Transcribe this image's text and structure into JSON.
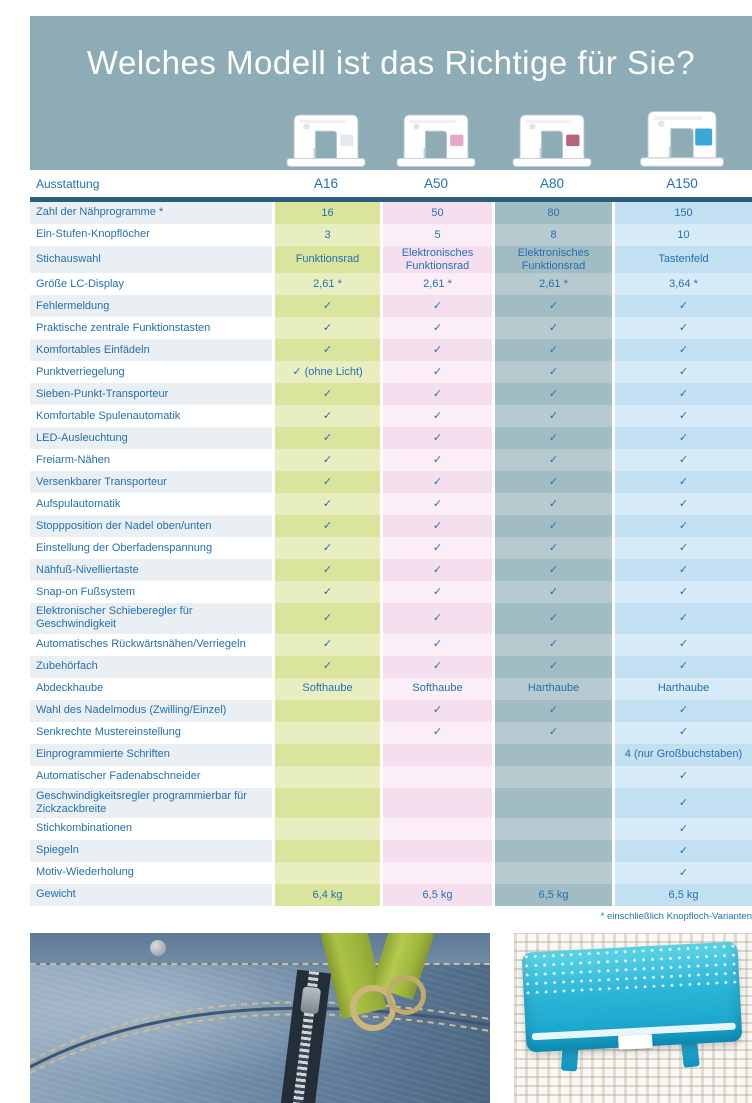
{
  "title": "Welches Modell ist das Richtige für Sie?",
  "table": {
    "feature_header": "Ausstattung",
    "models": [
      "A16",
      "A50",
      "A80",
      "A150"
    ],
    "rows": [
      {
        "label": "Zahl der Nähprogramme *",
        "values": [
          "16",
          "50",
          "80",
          "150"
        ]
      },
      {
        "label": "Ein-Stufen-Knopflöcher",
        "values": [
          "3",
          "5",
          "8",
          "10"
        ]
      },
      {
        "label": "Stichauswahl",
        "values": [
          "Funktionsrad",
          "Elektronisches Funktionsrad",
          "Elektronisches Funktionsrad",
          "Tastenfeld"
        ]
      },
      {
        "label": "Größe LC-Display",
        "values": [
          "2,61 *",
          "2,61 *",
          "2,61 *",
          "3,64 *"
        ]
      },
      {
        "label": "Fehlermeldung",
        "values": [
          "✓",
          "✓",
          "✓",
          "✓"
        ]
      },
      {
        "label": "Praktische zentrale Funktionstasten",
        "values": [
          "✓",
          "✓",
          "✓",
          "✓"
        ]
      },
      {
        "label": "Komfortables Einfädeln",
        "values": [
          "✓",
          "✓",
          "✓",
          "✓"
        ]
      },
      {
        "label": "Punktverriegelung",
        "values": [
          "✓ (ohne Licht)",
          "✓",
          "✓",
          "✓"
        ]
      },
      {
        "label": "Sieben-Punkt-Transporteur",
        "values": [
          "✓",
          "✓",
          "✓",
          "✓"
        ]
      },
      {
        "label": "Komfortable Spulenautomatik",
        "values": [
          "✓",
          "✓",
          "✓",
          "✓"
        ]
      },
      {
        "label": "LED-Ausleuchtung",
        "values": [
          "✓",
          "✓",
          "✓",
          "✓"
        ]
      },
      {
        "label": "Freiarm-Nähen",
        "values": [
          "✓",
          "✓",
          "✓",
          "✓"
        ]
      },
      {
        "label": "Versenkbarer Transporteur",
        "values": [
          "✓",
          "✓",
          "✓",
          "✓"
        ]
      },
      {
        "label": "Aufspulautomatik",
        "values": [
          "✓",
          "✓",
          "✓",
          "✓"
        ]
      },
      {
        "label": "Stoppposition der Nadel oben/unten",
        "values": [
          "✓",
          "✓",
          "✓",
          "✓"
        ]
      },
      {
        "label": "Einstellung der Oberfadenspannung",
        "values": [
          "✓",
          "✓",
          "✓",
          "✓"
        ]
      },
      {
        "label": "Nähfuß-Nivelliertaste",
        "values": [
          "✓",
          "✓",
          "✓",
          "✓"
        ]
      },
      {
        "label": "Snap-on Fußsystem",
        "values": [
          "✓",
          "✓",
          "✓",
          "✓"
        ]
      },
      {
        "label": "Elektronischer Schieberegler für Geschwindigkeit",
        "values": [
          "✓",
          "✓",
          "✓",
          "✓"
        ]
      },
      {
        "label": "Automatisches Rückwärtsnähen/Verriegeln",
        "values": [
          "✓",
          "✓",
          "✓",
          "✓"
        ]
      },
      {
        "label": "Zubehörfach",
        "values": [
          "✓",
          "✓",
          "✓",
          "✓"
        ]
      },
      {
        "label": "Abdeckhaube",
        "values": [
          "Softhaube",
          "Softhaube",
          "Harthaube",
          "Harthaube"
        ]
      },
      {
        "label": "Wahl des Nadelmodus (Zwilling/Einzel)",
        "values": [
          "",
          "✓",
          "✓",
          "✓"
        ]
      },
      {
        "label": "Senkrechte Mustereinstellung",
        "values": [
          "",
          "✓",
          "✓",
          "✓"
        ]
      },
      {
        "label": "Einprogrammierte Schriften",
        "values": [
          "",
          "",
          "",
          "4 (nur Großbuchstaben)"
        ]
      },
      {
        "label": "Automatischer Fadenabschneider",
        "values": [
          "",
          "",
          "",
          "✓"
        ]
      },
      {
        "label": "Geschwindigkeitsregler programmierbar für Zickzackbreite",
        "values": [
          "",
          "",
          "",
          "✓"
        ]
      },
      {
        "label": "Stichkombinationen",
        "values": [
          "",
          "",
          "",
          "✓"
        ]
      },
      {
        "label": "Spiegeln",
        "values": [
          "",
          "",
          "",
          "✓"
        ]
      },
      {
        "label": "Motiv-Wiederholung",
        "values": [
          "",
          "",
          "",
          "✓"
        ]
      },
      {
        "label": "Gewicht",
        "values": [
          "6,4 kg",
          "6,5 kg",
          "6,5 kg",
          "6,5 kg"
        ]
      }
    ],
    "footnote": "* einschließlich Knopfloch-Varianten"
  },
  "colors": {
    "header_band": "#8dacb5",
    "divider": "#2b5e7d",
    "text_blue": "#2470b3",
    "label_stripe": "#e9eff3",
    "a16_dark": "#dbe49c",
    "a16_light": "#e9eec1",
    "a50_dark": "#f5dfef",
    "a50_light": "#fbeef7",
    "a80_dark": "#a2bcc3",
    "a80_light": "#b6cad0",
    "a150_dark": "#c2e0f1",
    "a150_light": "#d6ebf7"
  }
}
